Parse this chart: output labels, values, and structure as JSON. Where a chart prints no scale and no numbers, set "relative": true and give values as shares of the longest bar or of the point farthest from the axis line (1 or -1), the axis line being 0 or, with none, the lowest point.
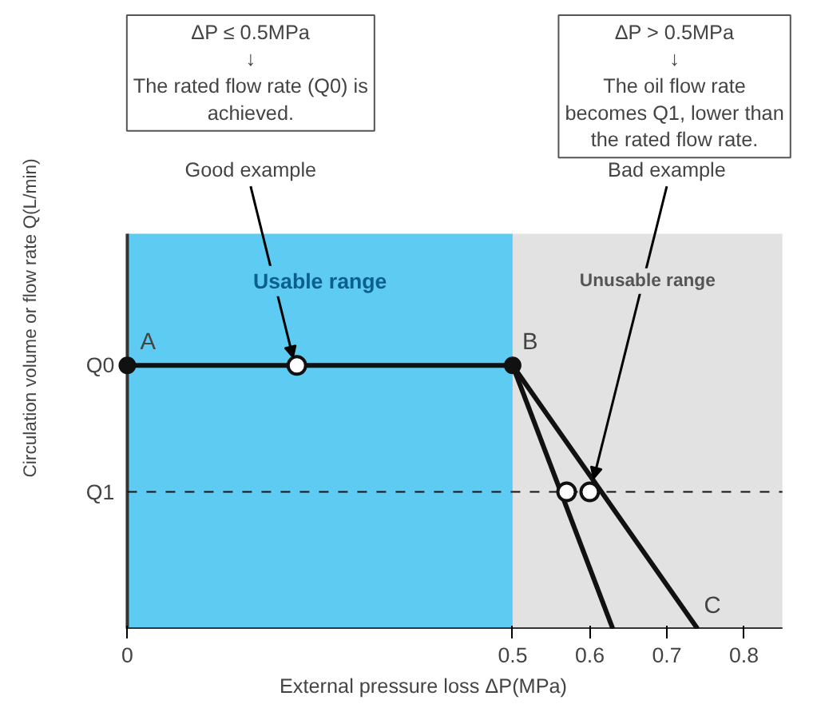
{
  "chart_data": {
    "type": "line",
    "relative": true,
    "xlabel": "External pressure loss ΔP(MPa)",
    "ylabel": "Circulation volume or flow rate Q(L/min)",
    "xlim": [
      0,
      0.85
    ],
    "xticks": [
      0,
      0.5,
      0.6,
      0.7,
      0.8
    ],
    "grid": false,
    "line_style": "solid",
    "series": [
      {
        "color": "#111111",
        "x": [
          0,
          0.5
        ],
        "values": [
          1,
          1
        ],
        "marker": "circle"
      },
      {
        "color": "#111111",
        "x": [
          0.5,
          0.63
        ],
        "values": [
          1,
          0
        ],
        "marker": "none"
      },
      {
        "color": "#111111",
        "x": [
          0.5,
          0.74
        ],
        "values": [
          1,
          0
        ],
        "marker": "none"
      },
      {
        "type": "scatter",
        "color": "#ffffff",
        "x": [
          0.22,
          0.57,
          0.6
        ],
        "values": [
          1,
          0.52,
          0.52
        ],
        "marker": "circle"
      }
    ],
    "ref_lines": [
      {
        "axis": "y",
        "value": 0.52,
        "label": "Q1",
        "color": "#111111",
        "line_style": "dashed"
      }
    ],
    "bands": [
      {
        "axis": "x",
        "from": 0,
        "to": 0.5,
        "label": "Usable range",
        "color": "#5ecbf2"
      },
      {
        "axis": "x",
        "from": 0.5,
        "to": 0.85,
        "label": "Unusable range",
        "color": "#e2e2e2"
      }
    ],
    "annotations": [
      {
        "text": "Q0",
        "x": 0,
        "y": 1
      },
      {
        "text": "A",
        "x": 0,
        "y": 1
      },
      {
        "text": "B",
        "x": 0.5,
        "y": 1
      },
      {
        "text": "C",
        "x": 0.74,
        "y": 0
      },
      {
        "text": "Good example",
        "x": 0.22,
        "y": 1
      },
      {
        "text": "Bad example",
        "x": 0.6,
        "y": 0.52
      },
      "ΔP ≤ 0.5MPa\n↓\nThe rated flow rate (Q0) is\nachieved.",
      "ΔP > 0.5MPa\n↓\nThe oil flow rate\nbecomes Q1, lower than\nthe rated flow rate."
    ]
  }
}
